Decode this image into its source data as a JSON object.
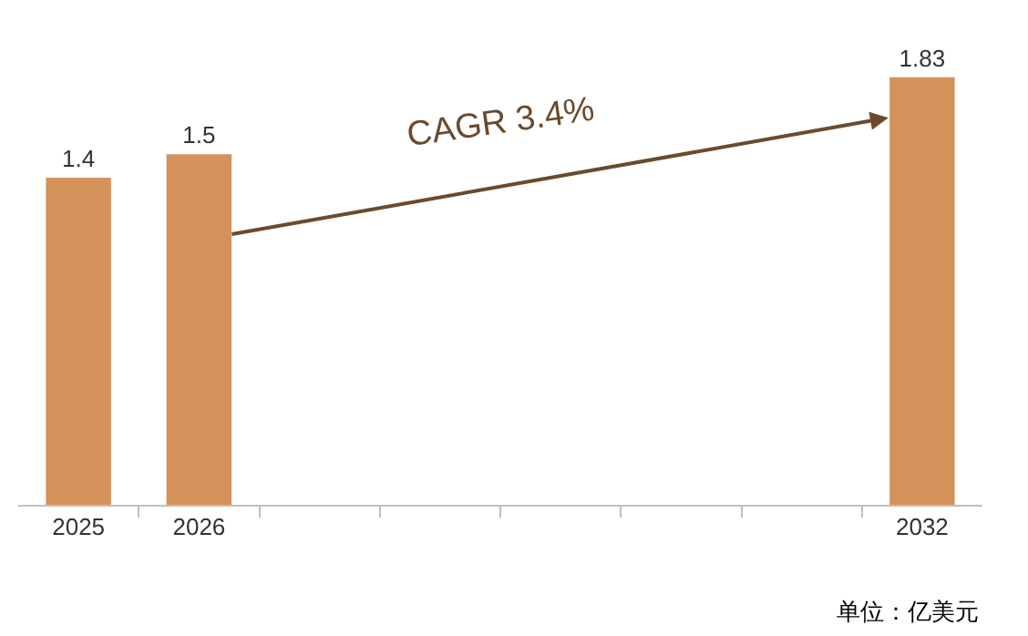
{
  "chart_data": {
    "type": "bar",
    "categories": [
      "2025",
      "2026",
      null,
      null,
      null,
      null,
      null,
      "2032"
    ],
    "values": [
      1.4,
      1.5,
      null,
      null,
      null,
      null,
      null,
      1.83
    ],
    "color": "#d5915a",
    "data_labels": true,
    "annotations": [
      "CAGR 3.4%",
      "单位：亿美元"
    ]
  }
}
